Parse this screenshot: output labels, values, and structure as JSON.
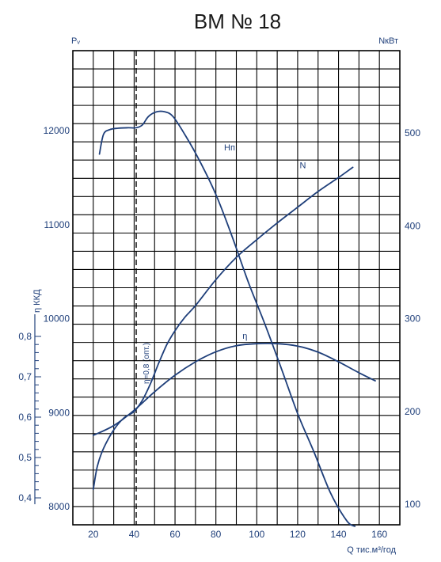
{
  "chart_data": {
    "type": "line",
    "title": "ВМ № 18",
    "left_axis_label": "Pᵥ",
    "right_axis_label": "NкВт",
    "eta_axis_label": "η ККД",
    "x_axis_label": "Q тис.м³/год",
    "optimum_label": "η=0,8 (опт.)",
    "x_ticks": [
      "20",
      "40",
      "60",
      "80",
      "100",
      "120",
      "140",
      "160"
    ],
    "left_ticks": [
      "8000",
      "9000",
      "10000",
      "11000",
      "12000"
    ],
    "right_ticks": [
      "100",
      "200",
      "300",
      "400",
      "500"
    ],
    "eta_ticks": [
      "0,4",
      "0,5",
      "0,6",
      "0,7",
      "0,8"
    ],
    "x_range": [
      10,
      170
    ],
    "pressure_range": [
      7800,
      12850
    ],
    "power_range": [
      80,
      520
    ],
    "eta_range": [
      0.4,
      0.8
    ],
    "optimum_q": 41,
    "grid": true,
    "series": [
      {
        "name": "Hп",
        "axis": "pressure",
        "points": [
          [
            23,
            11750
          ],
          [
            25,
            11960
          ],
          [
            28,
            12010
          ],
          [
            32,
            12025
          ],
          [
            37,
            12030
          ],
          [
            41,
            12030
          ],
          [
            44,
            12060
          ],
          [
            47,
            12150
          ],
          [
            51,
            12200
          ],
          [
            55,
            12200
          ],
          [
            59,
            12150
          ],
          [
            65,
            11950
          ],
          [
            72,
            11680
          ],
          [
            80,
            11320
          ],
          [
            88,
            10870
          ],
          [
            96,
            10380
          ],
          [
            104,
            9940
          ],
          [
            112,
            9470
          ],
          [
            120,
            8990
          ],
          [
            128,
            8580
          ],
          [
            136,
            8150
          ],
          [
            144,
            7850
          ],
          [
            148,
            7790
          ]
        ]
      },
      {
        "name": "N",
        "axis": "power",
        "points": [
          [
            20,
            116
          ],
          [
            22,
            141
          ],
          [
            25,
            160
          ],
          [
            30,
            180
          ],
          [
            35,
            193
          ],
          [
            40,
            200
          ],
          [
            44,
            212
          ],
          [
            48,
            230
          ],
          [
            52,
            252
          ],
          [
            56,
            272
          ],
          [
            60,
            287
          ],
          [
            65,
            302
          ],
          [
            70,
            314
          ],
          [
            80,
            342
          ],
          [
            90,
            366
          ],
          [
            100,
            385
          ],
          [
            110,
            403
          ],
          [
            120,
            420
          ],
          [
            130,
            437
          ],
          [
            140,
            452
          ],
          [
            147,
            463
          ]
        ]
      },
      {
        "name": "η",
        "axis": "eta",
        "points": [
          [
            20,
            0.555
          ],
          [
            30,
            0.579
          ],
          [
            40,
            0.617
          ],
          [
            50,
            0.663
          ],
          [
            60,
            0.704
          ],
          [
            70,
            0.737
          ],
          [
            80,
            0.762
          ],
          [
            90,
            0.777
          ],
          [
            100,
            0.782
          ],
          [
            110,
            0.782
          ],
          [
            120,
            0.776
          ],
          [
            130,
            0.761
          ],
          [
            140,
            0.737
          ],
          [
            150,
            0.71
          ],
          [
            158,
            0.69
          ]
        ]
      }
    ],
    "series_label_positions": [
      {
        "name": "Hп",
        "x": 84,
        "y": 11790,
        "axis": "pressure"
      },
      {
        "name": "N",
        "x": 121,
        "y": 462,
        "axis": "power"
      },
      {
        "name": "η",
        "x": 93,
        "y": 0.794,
        "axis": "eta"
      }
    ]
  }
}
